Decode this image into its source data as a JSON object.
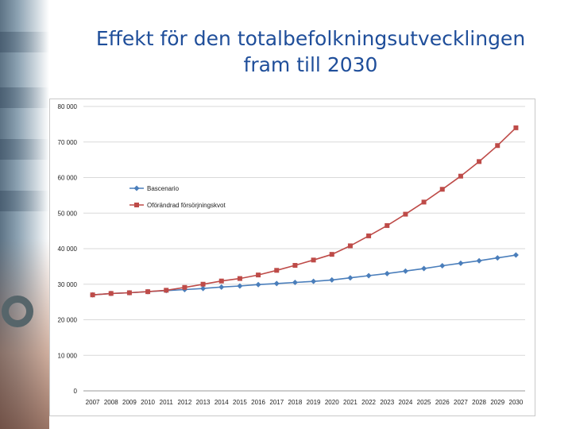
{
  "slide": {
    "title_line1": "Effekt för den totalbefolkningsutvecklingen",
    "title_line2": "fram till 2030"
  },
  "colors": {
    "title": "#1f4e9a",
    "series_blue": "#4a7ebb",
    "series_red": "#be4b48",
    "grid": "#d9d9d9"
  },
  "chart_data": {
    "type": "line",
    "title": "",
    "xlabel": "",
    "ylabel": "",
    "categories": [
      "2007",
      "2008",
      "2009",
      "2010",
      "2011",
      "2012",
      "2013",
      "2014",
      "2015",
      "2016",
      "2017",
      "2018",
      "2019",
      "2020",
      "2021",
      "2022",
      "2023",
      "2024",
      "2025",
      "2026",
      "2027",
      "2028",
      "2029",
      "2030"
    ],
    "ylim": [
      0,
      80000
    ],
    "y_ticks": [
      "0",
      "10 000",
      "20 000",
      "30 000",
      "40 000",
      "50 000",
      "60 000",
      "70 000",
      "80 000"
    ],
    "grid": true,
    "legend_position": "left, inside plot",
    "series": [
      {
        "name": "Bascenario",
        "marker": "diamond",
        "color": "#4a7ebb",
        "values": [
          27000,
          27400,
          27600,
          27900,
          28200,
          28500,
          28800,
          29200,
          29500,
          29900,
          30200,
          30500,
          30800,
          31200,
          31800,
          32400,
          33000,
          33700,
          34400,
          35200,
          35900,
          36600,
          37400,
          38200
        ]
      },
      {
        "name": "Oförändrad försörjningskvot",
        "marker": "square",
        "color": "#be4b48",
        "values": [
          27000,
          27400,
          27600,
          27900,
          28300,
          29100,
          30000,
          30900,
          31600,
          32600,
          33900,
          35300,
          36800,
          38400,
          40800,
          43600,
          46500,
          49700,
          53100,
          56700,
          60400,
          64500,
          69000,
          74000
        ]
      }
    ]
  }
}
